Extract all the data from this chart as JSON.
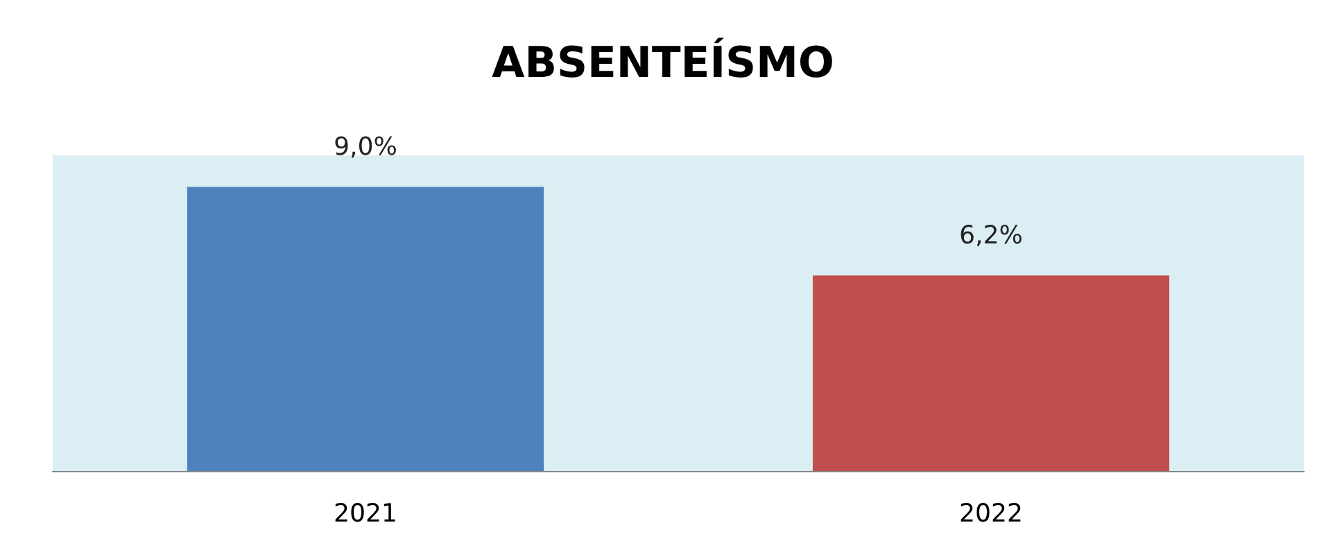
{
  "chart_data": {
    "type": "bar",
    "title": "ABSENTEÍSMO",
    "categories": [
      "2021",
      "2022"
    ],
    "values": [
      9.0,
      6.2
    ],
    "colors": [
      "#4f81bd",
      "#c0504d"
    ],
    "value_labels": [
      "9,0%",
      "6,2%"
    ],
    "ylim": [
      0,
      10
    ],
    "tick_labels": "x",
    "grid": false,
    "legend": false
  }
}
